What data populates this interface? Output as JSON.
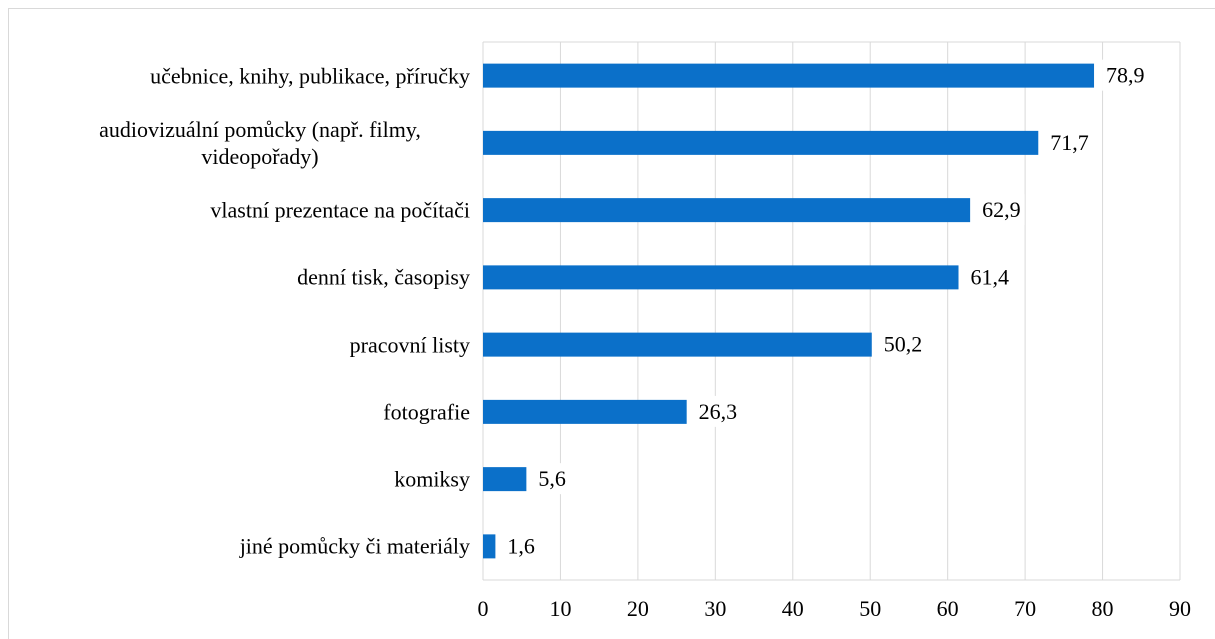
{
  "chart_data": {
    "type": "bar",
    "orientation": "horizontal",
    "categories": [
      "učebnice, knihy, publikace, příručky",
      "audiovizuální pomůcky (např. filmy, videopořady)",
      "vlastní prezentace na počítači",
      "denní tisk, časopisy",
      "pracovní listy",
      "fotografie",
      "komiksy",
      "jiné pomůcky či materiály"
    ],
    "values": [
      78.9,
      71.7,
      62.9,
      61.4,
      50.2,
      26.3,
      5.6,
      1.6
    ],
    "value_labels": [
      "78,9",
      "71,7",
      "62,9",
      "61,4",
      "50,2",
      "26,3",
      "5,6",
      "1,6"
    ],
    "color": "#0b70c9",
    "xlim": [
      0,
      90
    ],
    "xticks": [
      0,
      10,
      20,
      30,
      40,
      50,
      60,
      70,
      80,
      90
    ],
    "grid": true
  }
}
